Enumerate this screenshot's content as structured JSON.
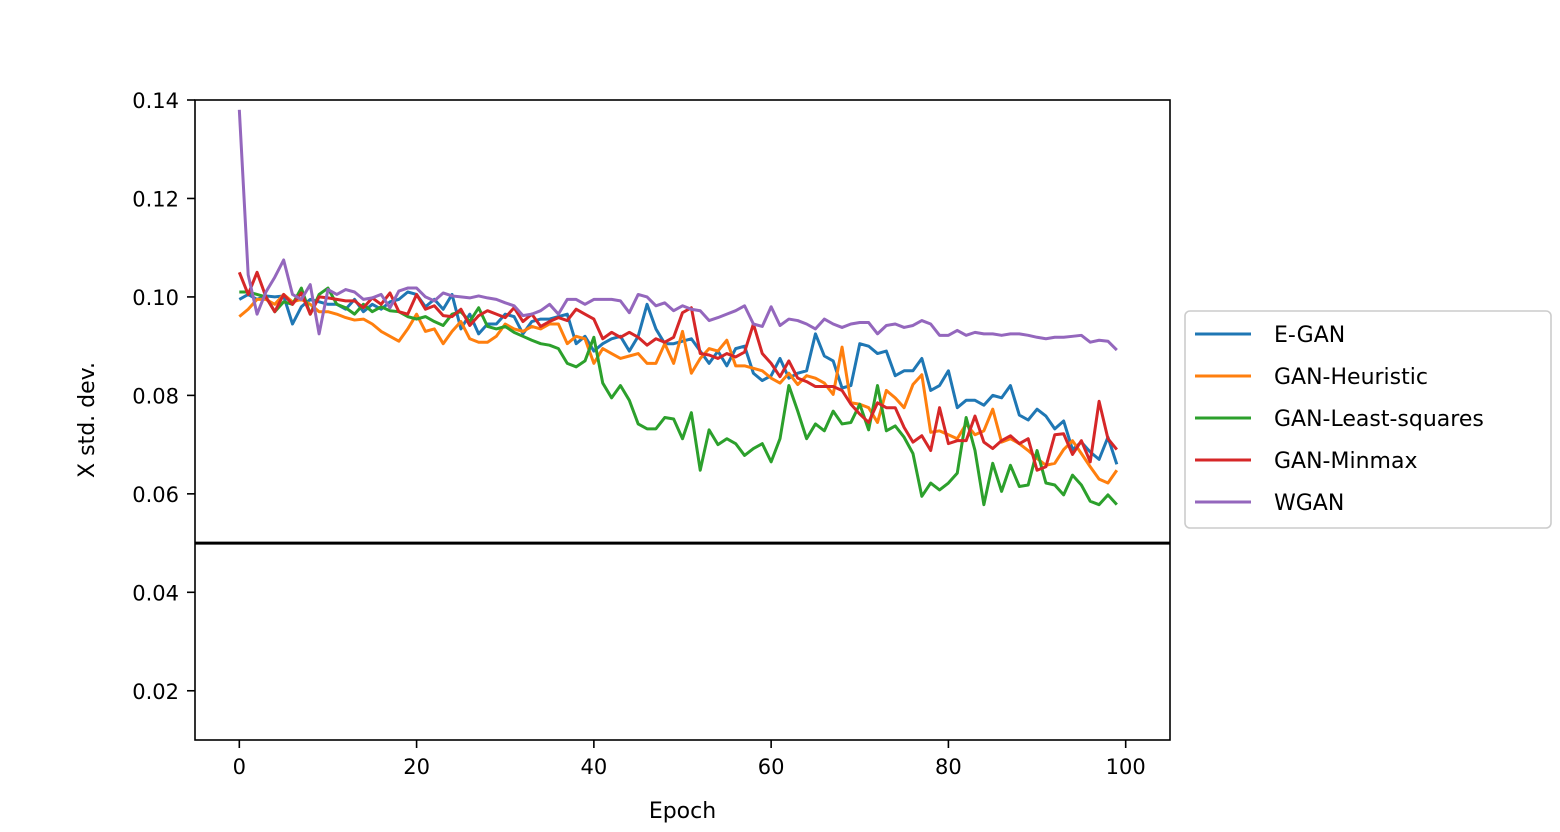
{
  "chart_data": {
    "type": "line",
    "title": "",
    "xlabel": "Epoch",
    "ylabel": "X std. dev.",
    "xlim": [
      -5,
      105
    ],
    "ylim": [
      0.01,
      0.14
    ],
    "xticks": [
      0,
      20,
      40,
      60,
      80,
      100
    ],
    "xtick_labels": [
      "0",
      "20",
      "40",
      "60",
      "80",
      "100"
    ],
    "yticks": [
      0.02,
      0.04,
      0.06,
      0.08,
      0.1,
      0.12,
      0.14
    ],
    "ytick_labels": [
      "0.02",
      "0.04",
      "0.06",
      "0.08",
      "0.10",
      "0.12",
      "0.14"
    ],
    "hline": 0.05,
    "legend_position": "right, outside",
    "grid": false,
    "series": [
      {
        "name": "E-GAN",
        "color": "#1f77b4",
        "values": [
          0.0995,
          0.1005,
          0.0995,
          0.1002,
          0.1,
          0.1002,
          0.0945,
          0.098,
          0.0995,
          0.099,
          0.0985,
          0.0985,
          0.0975,
          0.0995,
          0.097,
          0.0985,
          0.0975,
          0.099,
          0.0995,
          0.101,
          0.1005,
          0.098,
          0.0995,
          0.0975,
          0.1005,
          0.0935,
          0.0965,
          0.0925,
          0.0945,
          0.0945,
          0.0965,
          0.096,
          0.0925,
          0.095,
          0.0955,
          0.0955,
          0.096,
          0.0965,
          0.0905,
          0.092,
          0.089,
          0.0905,
          0.0915,
          0.092,
          0.089,
          0.092,
          0.0985,
          0.0935,
          0.0905,
          0.0905,
          0.091,
          0.0915,
          0.089,
          0.0865,
          0.089,
          0.086,
          0.0895,
          0.09,
          0.0845,
          0.083,
          0.084,
          0.0875,
          0.0835,
          0.0845,
          0.085,
          0.0925,
          0.088,
          0.087,
          0.0815,
          0.082,
          0.0905,
          0.09,
          0.0885,
          0.089,
          0.084,
          0.085,
          0.085,
          0.0875,
          0.081,
          0.082,
          0.085,
          0.0775,
          0.079,
          0.079,
          0.078,
          0.08,
          0.0795,
          0.082,
          0.076,
          0.075,
          0.0772,
          0.0758,
          0.0732,
          0.0748,
          0.069,
          0.0705,
          0.0685,
          0.067,
          0.0715,
          0.066
        ]
      },
      {
        "name": "GAN-Heuristic",
        "color": "#ff7f0e",
        "values": [
          0.096,
          0.0975,
          0.0995,
          0.0995,
          0.0985,
          0.1005,
          0.099,
          0.0995,
          0.0985,
          0.097,
          0.097,
          0.0965,
          0.0958,
          0.0953,
          0.0955,
          0.0945,
          0.093,
          0.092,
          0.091,
          0.0935,
          0.0965,
          0.093,
          0.0935,
          0.0905,
          0.093,
          0.095,
          0.0915,
          0.0908,
          0.0908,
          0.092,
          0.0945,
          0.0935,
          0.093,
          0.094,
          0.0935,
          0.0945,
          0.0945,
          0.0905,
          0.092,
          0.0915,
          0.0865,
          0.0895,
          0.0885,
          0.0875,
          0.088,
          0.0885,
          0.0865,
          0.0865,
          0.0905,
          0.0865,
          0.093,
          0.0845,
          0.0875,
          0.0895,
          0.089,
          0.0912,
          0.086,
          0.086,
          0.0855,
          0.085,
          0.0835,
          0.0825,
          0.0845,
          0.0822,
          0.084,
          0.0835,
          0.0825,
          0.0802,
          0.0898,
          0.0785,
          0.0782,
          0.0775,
          0.0745,
          0.081,
          0.0795,
          0.0775,
          0.0822,
          0.0842,
          0.0725,
          0.0728,
          0.072,
          0.0712,
          0.0742,
          0.072,
          0.0728,
          0.0772,
          0.0705,
          0.0712,
          0.0702,
          0.0688,
          0.0672,
          0.0658,
          0.0662,
          0.069,
          0.0708,
          0.0682,
          0.0655,
          0.063,
          0.0622,
          0.0648
        ]
      },
      {
        "name": "GAN-Least-squares",
        "color": "#2ca02c",
        "values": [
          0.101,
          0.101,
          0.1005,
          0.1,
          0.097,
          0.099,
          0.0985,
          0.1018,
          0.0965,
          0.1005,
          0.1018,
          0.0985,
          0.0978,
          0.0965,
          0.0985,
          0.097,
          0.098,
          0.0972,
          0.097,
          0.096,
          0.0955,
          0.096,
          0.095,
          0.0942,
          0.0965,
          0.097,
          0.095,
          0.0978,
          0.094,
          0.0935,
          0.094,
          0.0928,
          0.092,
          0.0912,
          0.0905,
          0.0902,
          0.0895,
          0.0865,
          0.0858,
          0.087,
          0.0918,
          0.0825,
          0.0795,
          0.082,
          0.079,
          0.0742,
          0.0732,
          0.0732,
          0.0755,
          0.0752,
          0.0712,
          0.0765,
          0.0648,
          0.073,
          0.07,
          0.0712,
          0.0702,
          0.0678,
          0.0692,
          0.0702,
          0.0665,
          0.0712,
          0.082,
          0.0768,
          0.0712,
          0.0742,
          0.0728,
          0.0768,
          0.0742,
          0.0745,
          0.0782,
          0.073,
          0.082,
          0.0728,
          0.0738,
          0.0715,
          0.0682,
          0.0595,
          0.0622,
          0.0608,
          0.0622,
          0.0642,
          0.0755,
          0.0688,
          0.0578,
          0.0662,
          0.0605,
          0.0658,
          0.0615,
          0.0618,
          0.0688,
          0.0622,
          0.0618,
          0.0598,
          0.0638,
          0.0618,
          0.0585,
          0.0578,
          0.0598,
          0.0578
        ]
      },
      {
        "name": "GAN-Minmax",
        "color": "#d62728",
        "values": [
          0.105,
          0.1005,
          0.105,
          0.1,
          0.097,
          0.1005,
          0.0985,
          0.1008,
          0.0965,
          0.1,
          0.0998,
          0.0995,
          0.0992,
          0.0992,
          0.0978,
          0.0998,
          0.0985,
          0.1008,
          0.097,
          0.0965,
          0.1005,
          0.0975,
          0.0982,
          0.0962,
          0.096,
          0.0975,
          0.0942,
          0.0962,
          0.0972,
          0.0965,
          0.0958,
          0.0978,
          0.095,
          0.0965,
          0.094,
          0.095,
          0.0958,
          0.0952,
          0.0975,
          0.0965,
          0.0955,
          0.0915,
          0.0928,
          0.0918,
          0.0928,
          0.0918,
          0.0902,
          0.0915,
          0.0908,
          0.0918,
          0.0968,
          0.0978,
          0.0885,
          0.0882,
          0.0875,
          0.0885,
          0.0878,
          0.0888,
          0.0945,
          0.0885,
          0.0865,
          0.0838,
          0.087,
          0.0835,
          0.0828,
          0.0818,
          0.0818,
          0.0818,
          0.081,
          0.0782,
          0.0762,
          0.0745,
          0.0785,
          0.0775,
          0.0775,
          0.0735,
          0.0705,
          0.0718,
          0.0688,
          0.0775,
          0.0702,
          0.0708,
          0.0708,
          0.0758,
          0.0705,
          0.0692,
          0.0708,
          0.0718,
          0.0702,
          0.0712,
          0.0648,
          0.0655,
          0.072,
          0.0722,
          0.068,
          0.0708,
          0.0665,
          0.0788,
          0.0712,
          0.069
        ]
      },
      {
        "name": "WGAN",
        "color": "#9467bd",
        "values": [
          0.138,
          0.1045,
          0.0965,
          0.101,
          0.104,
          0.1075,
          0.1005,
          0.0995,
          0.1025,
          0.0925,
          0.1015,
          0.1005,
          0.1015,
          0.101,
          0.0995,
          0.0998,
          0.1005,
          0.0978,
          0.1012,
          0.1018,
          0.1018,
          0.1,
          0.0992,
          0.1008,
          0.1002,
          0.1,
          0.0998,
          0.1002,
          0.0998,
          0.0995,
          0.0988,
          0.0982,
          0.0962,
          0.0965,
          0.0972,
          0.0985,
          0.0965,
          0.0995,
          0.0995,
          0.0985,
          0.0995,
          0.0995,
          0.0995,
          0.0992,
          0.0968,
          0.1005,
          0.1,
          0.0982,
          0.0988,
          0.0972,
          0.0982,
          0.0975,
          0.0972,
          0.0952,
          0.0958,
          0.0965,
          0.0972,
          0.0982,
          0.0945,
          0.094,
          0.098,
          0.0942,
          0.0955,
          0.0952,
          0.0945,
          0.0935,
          0.0955,
          0.0945,
          0.0938,
          0.0945,
          0.0948,
          0.0948,
          0.0925,
          0.0942,
          0.0945,
          0.0938,
          0.0942,
          0.0952,
          0.0945,
          0.0922,
          0.0922,
          0.0932,
          0.0922,
          0.0928,
          0.0925,
          0.0925,
          0.0922,
          0.0925,
          0.0925,
          0.0922,
          0.0918,
          0.0915,
          0.0918,
          0.0918,
          0.092,
          0.0922,
          0.0908,
          0.0912,
          0.091,
          0.0892
        ]
      }
    ]
  }
}
